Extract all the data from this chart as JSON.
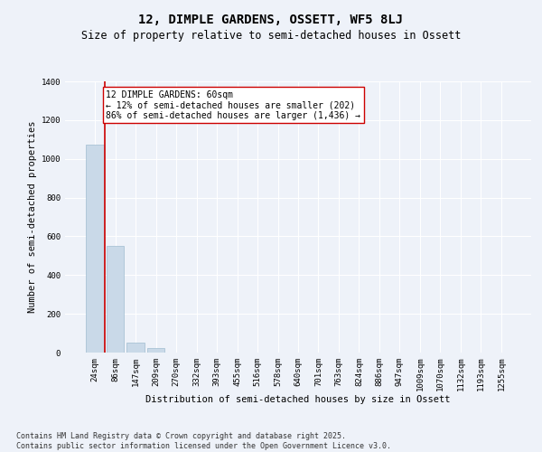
{
  "title": "12, DIMPLE GARDENS, OSSETT, WF5 8LJ",
  "subtitle": "Size of property relative to semi-detached houses in Ossett",
  "xlabel": "Distribution of semi-detached houses by size in Ossett",
  "ylabel": "Number of semi-detached properties",
  "categories": [
    "24sqm",
    "86sqm",
    "147sqm",
    "209sqm",
    "270sqm",
    "332sqm",
    "393sqm",
    "455sqm",
    "516sqm",
    "578sqm",
    "640sqm",
    "701sqm",
    "763sqm",
    "824sqm",
    "886sqm",
    "947sqm",
    "1009sqm",
    "1070sqm",
    "1132sqm",
    "1193sqm",
    "1255sqm"
  ],
  "values": [
    1075,
    550,
    50,
    25,
    0,
    0,
    0,
    0,
    0,
    0,
    0,
    0,
    0,
    0,
    0,
    0,
    0,
    0,
    0,
    0,
    0
  ],
  "bar_color": "#c9d9e8",
  "bar_edgecolor": "#a0bcd0",
  "property_line_color": "#cc0000",
  "annotation_text": "12 DIMPLE GARDENS: 60sqm\n← 12% of semi-detached houses are smaller (202)\n86% of semi-detached houses are larger (1,436) →",
  "annotation_box_color": "#ffffff",
  "annotation_box_edgecolor": "#cc0000",
  "ylim": [
    0,
    1400
  ],
  "yticks": [
    0,
    200,
    400,
    600,
    800,
    1000,
    1200,
    1400
  ],
  "background_color": "#eef2f9",
  "grid_color": "#ffffff",
  "footnote": "Contains HM Land Registry data © Crown copyright and database right 2025.\nContains public sector information licensed under the Open Government Licence v3.0.",
  "title_fontsize": 10,
  "subtitle_fontsize": 8.5,
  "axis_label_fontsize": 7.5,
  "tick_fontsize": 6.5,
  "annotation_fontsize": 7,
  "footnote_fontsize": 6
}
